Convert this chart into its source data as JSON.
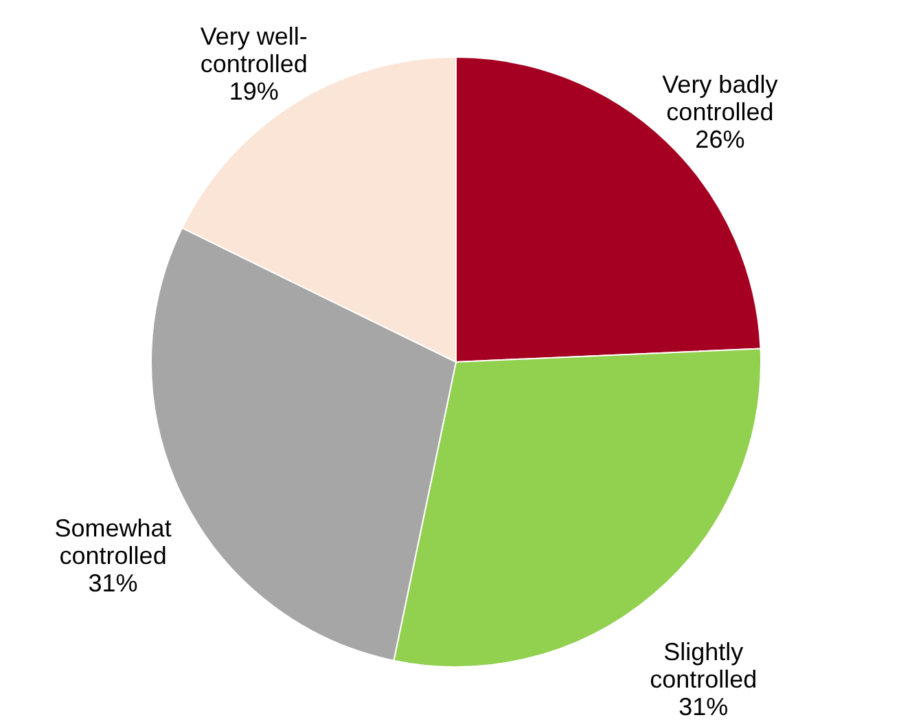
{
  "chart_data": {
    "type": "pie",
    "categories": [
      "Very badly\ncontrolled",
      "Slightly\ncontrolled",
      "Somewhat\ncontrolled",
      "Very well-\ncontrolled"
    ],
    "values": [
      26,
      31,
      31,
      19
    ],
    "colors": [
      "#a50021",
      "#92d050",
      "#a6a6a6",
      "#fbe5d6"
    ],
    "value_labels": [
      "26%",
      "31%",
      "31%",
      "19%"
    ],
    "legend": false
  }
}
